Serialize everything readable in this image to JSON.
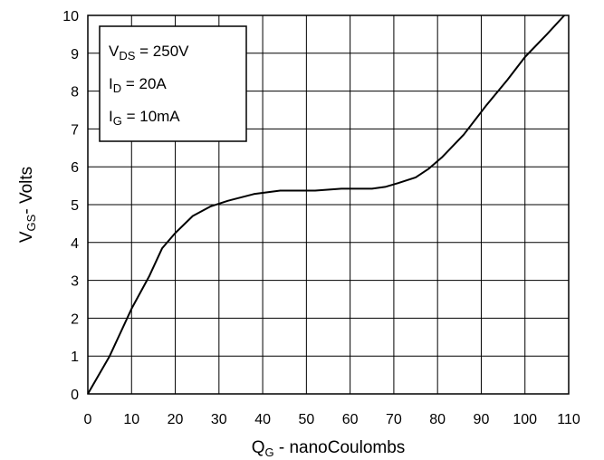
{
  "chart_data": {
    "type": "line",
    "title": "",
    "xlabel": {
      "main": "Q",
      "sub": "G",
      "rest": " - nanoCoulombs"
    },
    "ylabel": {
      "main": "V",
      "sub": "GS",
      "rest": "- Volts"
    },
    "xlim": [
      0,
      110
    ],
    "ylim": [
      0,
      10
    ],
    "xticks": [
      0,
      10,
      20,
      30,
      40,
      50,
      60,
      70,
      80,
      90,
      100,
      110
    ],
    "yticks": [
      0,
      1,
      2,
      3,
      4,
      5,
      6,
      7,
      8,
      9,
      10
    ],
    "grid": true,
    "legend_position": "top-left",
    "conditions": [
      {
        "main": "V",
        "sub": "DS",
        "rest": " = 250V"
      },
      {
        "main": "I",
        "sub": "D",
        "rest": " = 20A"
      },
      {
        "main": "I",
        "sub": "G",
        "rest": " = 10mA"
      }
    ],
    "series": [
      {
        "x": [
          0,
          5,
          10,
          14,
          17,
          20,
          24,
          28,
          32,
          38,
          44,
          52,
          58,
          65,
          68,
          71,
          75,
          78,
          81,
          86,
          91,
          96,
          100,
          105,
          109
        ],
        "y": [
          0,
          1.0,
          2.25,
          3.1,
          3.85,
          4.25,
          4.7,
          4.95,
          5.1,
          5.28,
          5.37,
          5.37,
          5.42,
          5.42,
          5.47,
          5.57,
          5.72,
          5.95,
          6.25,
          6.85,
          7.6,
          8.3,
          8.9,
          9.5,
          10.0
        ]
      }
    ],
    "line_color": "#000000"
  }
}
